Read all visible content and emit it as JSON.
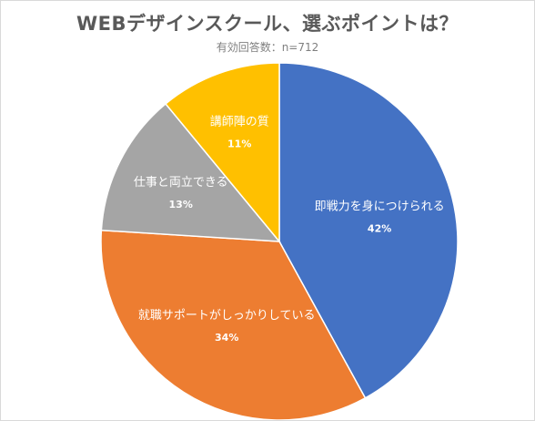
{
  "chart_data": {
    "type": "pie",
    "title": "WEBデザインスクール、選ぶポイントは？",
    "subtitle": "有効回答数：n=712",
    "start_angle_deg": 0,
    "direction": "clockwise",
    "slices": [
      {
        "label": "即戦力を身につけられる",
        "value": 42,
        "value_label": "42%",
        "color": "#4472C4"
      },
      {
        "label": "就職サポートがしっかりしている",
        "value": 34,
        "value_label": "34%",
        "color": "#ED7D31"
      },
      {
        "label": "仕事と両立できる",
        "value": 13,
        "value_label": "13%",
        "color": "#A5A5A5"
      },
      {
        "label": "講師陣の質",
        "value": 11,
        "value_label": "11%",
        "color": "#FFC000"
      }
    ]
  }
}
